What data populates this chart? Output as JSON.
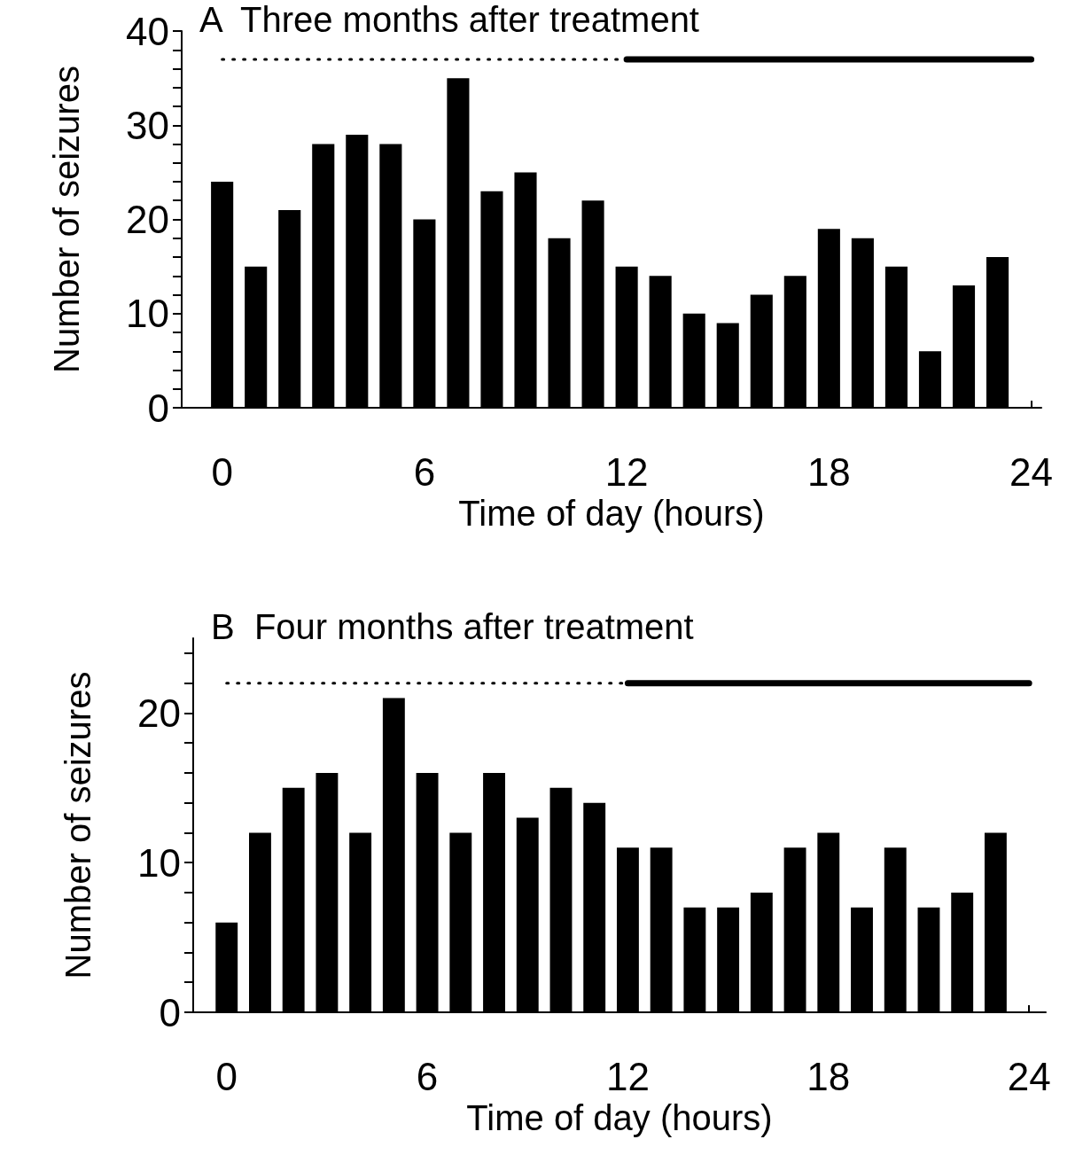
{
  "chart_data": [
    {
      "type": "bar",
      "title": "A  Three months after treatment",
      "xlabel": "Time of day (hours)",
      "ylabel": "Number of seizures",
      "x": [
        0,
        1,
        2,
        3,
        4,
        5,
        6,
        7,
        8,
        9,
        10,
        11,
        12,
        13,
        14,
        15,
        16,
        17,
        18,
        19,
        20,
        21,
        22,
        23
      ],
      "series": [
        {
          "type": "bar",
          "color": "#000000",
          "values": [
            24,
            15,
            21,
            28,
            29,
            28,
            20,
            35,
            23,
            25,
            18,
            22,
            15,
            14,
            10,
            9,
            12,
            14,
            19,
            18,
            15,
            6,
            13,
            16
          ]
        },
        {
          "type": "line",
          "color": "#000000",
          "x": [
            0,
            12
          ],
          "values": [
            37,
            37
          ],
          "line_style": "dotted",
          "marker": "none"
        },
        {
          "type": "line",
          "color": "#000000",
          "x": [
            12,
            24
          ],
          "values": [
            37,
            37
          ],
          "line_style": "solid",
          "marker": "none"
        }
      ],
      "xlim": [
        -1.2,
        24.3
      ],
      "xticks": [
        0,
        {
          "value": 1,
          "label": null
        },
        {
          "value": 2,
          "label": null
        },
        {
          "value": 3,
          "label": null
        },
        {
          "value": 4,
          "label": null
        },
        {
          "value": 5,
          "label": null
        },
        6,
        {
          "value": 7,
          "label": null
        },
        {
          "value": 8,
          "label": null
        },
        {
          "value": 9,
          "label": null
        },
        {
          "value": 10,
          "label": null
        },
        {
          "value": 11,
          "label": null
        },
        12,
        {
          "value": 13,
          "label": null
        },
        {
          "value": 14,
          "label": null
        },
        {
          "value": 15,
          "label": null
        },
        {
          "value": 16,
          "label": null
        },
        {
          "value": 17,
          "label": null
        },
        18,
        {
          "value": 19,
          "label": null
        },
        {
          "value": 20,
          "label": null
        },
        {
          "value": 21,
          "label": null
        },
        {
          "value": 22,
          "label": null
        },
        {
          "value": 23,
          "label": null
        },
        24
      ],
      "ylim": [
        0,
        40
      ],
      "yticks": [
        0,
        {
          "value": 2,
          "label": null
        },
        {
          "value": 4,
          "label": null
        },
        {
          "value": 6,
          "label": null
        },
        {
          "value": 8,
          "label": null
        },
        10,
        {
          "value": 12,
          "label": null
        },
        {
          "value": 14,
          "label": null
        },
        {
          "value": 16,
          "label": null
        },
        {
          "value": 18,
          "label": null
        },
        20,
        {
          "value": 22,
          "label": null
        },
        {
          "value": 24,
          "label": null
        },
        {
          "value": 26,
          "label": null
        },
        {
          "value": 28,
          "label": null
        },
        30,
        {
          "value": 32,
          "label": null
        },
        {
          "value": 34,
          "label": null
        },
        {
          "value": 36,
          "label": null
        },
        {
          "value": 38,
          "label": null
        },
        40
      ],
      "grid": false
    },
    {
      "type": "bar",
      "title": "B  Four months after treatment",
      "xlabel": "Time of day (hours)",
      "ylabel": "Number of seizures",
      "x": [
        0,
        1,
        2,
        3,
        4,
        5,
        6,
        7,
        8,
        9,
        10,
        11,
        12,
        13,
        14,
        15,
        16,
        17,
        18,
        19,
        20,
        21,
        22,
        23
      ],
      "series": [
        {
          "type": "bar",
          "color": "#000000",
          "values": [
            6,
            12,
            15,
            16,
            12,
            21,
            16,
            12,
            16,
            13,
            15,
            14,
            11,
            11,
            7,
            7,
            8,
            11,
            12,
            7,
            11,
            7,
            8,
            12
          ]
        },
        {
          "type": "line",
          "color": "#000000",
          "x": [
            0,
            12
          ],
          "values": [
            22,
            22
          ],
          "line_style": "dotted",
          "marker": "none"
        },
        {
          "type": "line",
          "color": "#000000",
          "x": [
            12,
            24
          ],
          "values": [
            22,
            22
          ],
          "line_style": "solid",
          "marker": "none"
        }
      ],
      "xlim": [
        -1,
        24.5
      ],
      "xticks": [
        0,
        {
          "value": 1,
          "label": null
        },
        {
          "value": 2,
          "label": null
        },
        {
          "value": 3,
          "label": null
        },
        {
          "value": 4,
          "label": null
        },
        {
          "value": 5,
          "label": null
        },
        6,
        {
          "value": 7,
          "label": null
        },
        {
          "value": 8,
          "label": null
        },
        {
          "value": 9,
          "label": null
        },
        {
          "value": 10,
          "label": null
        },
        {
          "value": 11,
          "label": null
        },
        12,
        {
          "value": 13,
          "label": null
        },
        {
          "value": 14,
          "label": null
        },
        {
          "value": 15,
          "label": null
        },
        {
          "value": 16,
          "label": null
        },
        {
          "value": 17,
          "label": null
        },
        18,
        {
          "value": 19,
          "label": null
        },
        {
          "value": 20,
          "label": null
        },
        {
          "value": 21,
          "label": null
        },
        {
          "value": 22,
          "label": null
        },
        {
          "value": 23,
          "label": null
        },
        24
      ],
      "ylim": [
        0,
        25
      ],
      "yticks": [
        0,
        {
          "value": 2,
          "label": null
        },
        {
          "value": 4,
          "label": null
        },
        {
          "value": 6,
          "label": null
        },
        {
          "value": 8,
          "label": null
        },
        10,
        {
          "value": 12,
          "label": null
        },
        {
          "value": 14,
          "label": null
        },
        {
          "value": 16,
          "label": null
        },
        {
          "value": 18,
          "label": null
        },
        20,
        {
          "value": 22,
          "label": null
        },
        {
          "value": 24,
          "label": null
        }
      ],
      "grid": false
    }
  ]
}
